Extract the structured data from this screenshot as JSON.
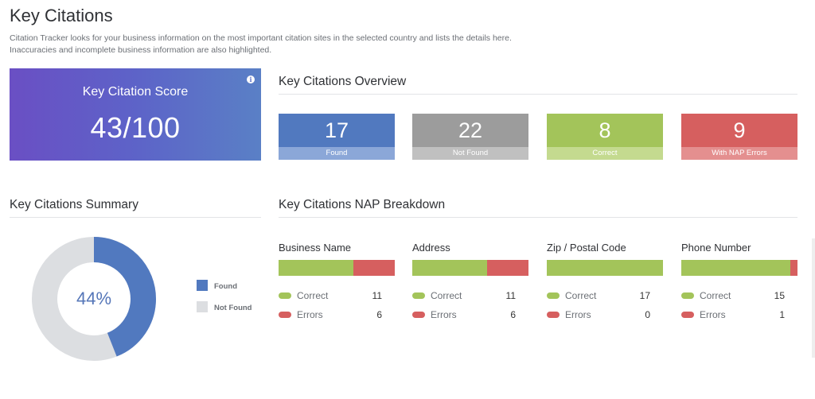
{
  "page": {
    "title": "Key Citations",
    "description_line1": "Citation Tracker looks for your business information on the most important citation sites in the selected country and lists the details here.",
    "description_line2": "Inaccuracies and incomplete business information are also highlighted."
  },
  "score": {
    "label": "Key Citation Score",
    "value": "43/100",
    "info_icon": "info-icon",
    "info_glyph": "i"
  },
  "overview": {
    "title": "Key Citations Overview",
    "cards": [
      {
        "value": "17",
        "label": "Found",
        "color": "#5179bf",
        "label_bg": "#8ba7d8"
      },
      {
        "value": "22",
        "label": "Not Found",
        "color": "#9c9c9c",
        "label_bg": "#c0c0c0"
      },
      {
        "value": "8",
        "label": "Correct",
        "color": "#a3c45a",
        "label_bg": "#c4da8f"
      },
      {
        "value": "9",
        "label": "With NAP Errors",
        "color": "#d65f5f",
        "label_bg": "#e48f8f"
      }
    ]
  },
  "summary": {
    "title": "Key Citations Summary",
    "percent_label": "44%",
    "found_fraction": 0.44,
    "found_color": "#5179bf",
    "not_found_color": "#dcdee1",
    "legend": [
      {
        "label": "Found",
        "color": "#5179bf"
      },
      {
        "label": "Not Found",
        "color": "#dcdee1"
      }
    ]
  },
  "nap": {
    "title": "Key Citations NAP Breakdown",
    "correct_label": "Correct",
    "errors_label": "Errors",
    "columns": [
      {
        "title": "Business Name",
        "correct": 11,
        "errors": 6
      },
      {
        "title": "Address",
        "correct": 11,
        "errors": 6
      },
      {
        "title": "Zip / Postal Code",
        "correct": 17,
        "errors": 0
      },
      {
        "title": "Phone Number",
        "correct": 15,
        "errors": 1
      }
    ]
  }
}
